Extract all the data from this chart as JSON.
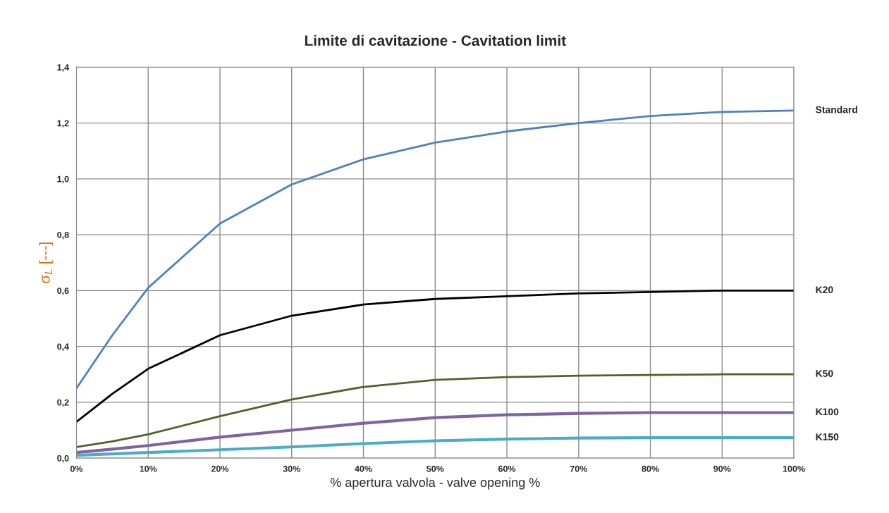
{
  "chart_data": {
    "type": "line",
    "title": "Limite di cavitazione - Cavitation limit",
    "xlabel": "% apertura valvola - valve opening %",
    "ylabel": "σ$_{L}$ [---]",
    "x": [
      0,
      5,
      10,
      20,
      30,
      40,
      50,
      60,
      70,
      80,
      90,
      100
    ],
    "series": [
      {
        "name": "Standard",
        "color": "#4f81bd",
        "values": [
          0.25,
          0.44,
          0.61,
          0.84,
          0.98,
          1.07,
          1.13,
          1.17,
          1.2,
          1.225,
          1.24,
          1.245
        ]
      },
      {
        "name": "K20",
        "color": "#000000",
        "values": [
          0.13,
          0.23,
          0.32,
          0.44,
          0.51,
          0.55,
          0.57,
          0.58,
          0.59,
          0.595,
          0.6,
          0.6
        ]
      },
      {
        "name": "K50",
        "color": "#4f6228",
        "values": [
          0.04,
          0.06,
          0.085,
          0.15,
          0.21,
          0.255,
          0.28,
          0.29,
          0.295,
          0.298,
          0.3,
          0.3
        ]
      },
      {
        "name": "K100",
        "color": "#8064a2",
        "values": [
          0.02,
          0.032,
          0.045,
          0.075,
          0.1,
          0.125,
          0.145,
          0.155,
          0.16,
          0.163,
          0.163,
          0.163
        ]
      },
      {
        "name": "K150",
        "color": "#4bacc6",
        "values": [
          0.01,
          0.015,
          0.02,
          0.03,
          0.04,
          0.052,
          0.062,
          0.068,
          0.072,
          0.073,
          0.073,
          0.073
        ]
      }
    ],
    "xlim": [
      0,
      100
    ],
    "xticks": [
      {
        "value": 0,
        "label": "0%"
      },
      {
        "value": 10,
        "label": "10%"
      },
      {
        "value": 20,
        "label": "20%"
      },
      {
        "value": 30,
        "label": "30%"
      },
      {
        "value": 40,
        "label": "40%"
      },
      {
        "value": 50,
        "label": "50%"
      },
      {
        "value": 60,
        "label": "60%"
      },
      {
        "value": 70,
        "label": "70%"
      },
      {
        "value": 80,
        "label": "80%"
      },
      {
        "value": 90,
        "label": "90%"
      },
      {
        "value": 100,
        "label": "100%"
      }
    ],
    "ylim": [
      0,
      1.4
    ],
    "yticks": [
      {
        "value": 0,
        "label": "0,0"
      },
      {
        "value": 0.2,
        "label": "0,2"
      },
      {
        "value": 0.4,
        "label": "0,4"
      },
      {
        "value": 0.6,
        "label": "0,6"
      },
      {
        "value": 0.8,
        "label": "0,8"
      },
      {
        "value": 1.0,
        "label": "1,0"
      },
      {
        "value": 1.2,
        "label": "1,2"
      },
      {
        "value": 1.4,
        "label": "1,4"
      }
    ],
    "grid": true,
    "legend": false,
    "marker": "none",
    "line_style": "solid"
  }
}
